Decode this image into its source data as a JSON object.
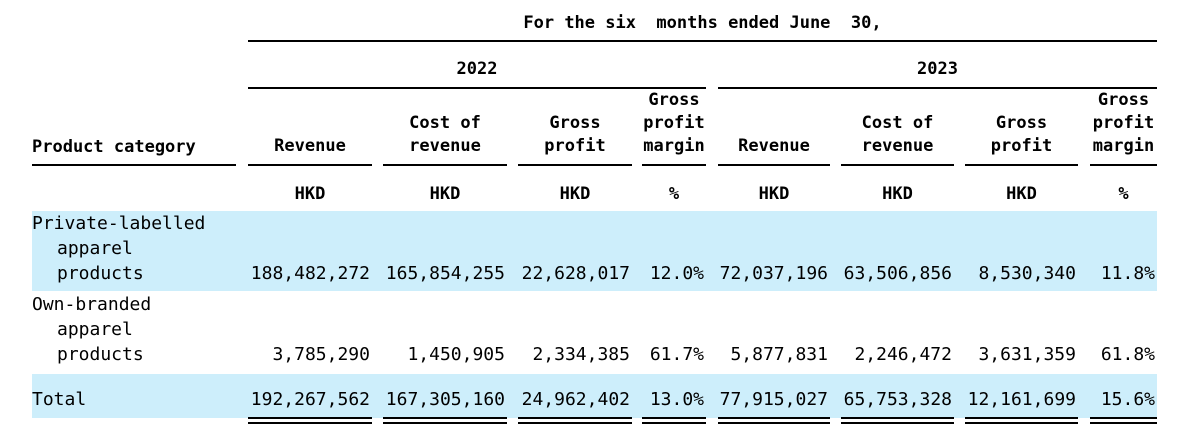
{
  "table": {
    "period_heading": "For the six  months ended June  30,",
    "years": [
      "2022",
      "2023"
    ],
    "category_header": "Product category",
    "column_headers": [
      "Revenue",
      "Cost of\nrevenue",
      "Gross\nprofit",
      "Gross\nprofit\nmargin"
    ],
    "units": [
      "HKD",
      "HKD",
      "HKD",
      "%"
    ],
    "rows": [
      {
        "label_lines": [
          "Private-labelled",
          "apparel",
          "products"
        ],
        "values": [
          "188,482,272",
          "165,854,255",
          "22,628,017",
          "12.0%",
          "72,037,196",
          "63,506,856",
          "8,530,340",
          "11.8%"
        ]
      },
      {
        "label_lines": [
          "Own-branded",
          "apparel",
          "products"
        ],
        "values": [
          "3,785,290",
          "1,450,905",
          "2,334,385",
          "61.7%",
          "5,877,831",
          "2,246,472",
          "3,631,359",
          "61.8%"
        ]
      },
      {
        "label_lines": [
          "Total"
        ],
        "values": [
          "192,267,562",
          "167,305,160",
          "24,962,402",
          "13.0%",
          "77,915,027",
          "65,753,328",
          "12,161,699",
          "15.6%"
        ]
      }
    ],
    "highlight_color": "#cdeefb"
  }
}
